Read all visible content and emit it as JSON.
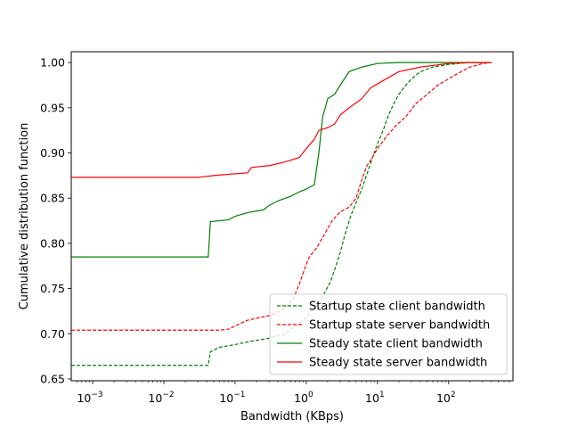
{
  "chart_data": {
    "type": "line",
    "title": "",
    "xlabel": "Bandwidth (KBps)",
    "ylabel": "Cumulative distribution function",
    "xscale": "log",
    "xlim": [
      0.0005,
      800
    ],
    "ylim": [
      0.648,
      1.012
    ],
    "x_ticks": [
      {
        "value": 0.001,
        "base": "10",
        "exp": "−3"
      },
      {
        "value": 0.01,
        "base": "10",
        "exp": "−2"
      },
      {
        "value": 0.1,
        "base": "10",
        "exp": "−1"
      },
      {
        "value": 1,
        "base": "10",
        "exp": "0"
      },
      {
        "value": 10,
        "base": "10",
        "exp": "1"
      },
      {
        "value": 100,
        "base": "10",
        "exp": "2"
      }
    ],
    "y_ticks": [
      "0.65",
      "0.70",
      "0.75",
      "0.80",
      "0.85",
      "0.90",
      "0.95",
      "1.00"
    ],
    "grid": false,
    "legend_position": "bottom-right",
    "series": [
      {
        "name": "Startup state client bandwidth",
        "color": "#008000",
        "style": "dashed",
        "points": [
          [
            0.0005,
            0.665
          ],
          [
            0.042,
            0.665
          ],
          [
            0.045,
            0.68
          ],
          [
            0.06,
            0.685
          ],
          [
            0.1,
            0.688
          ],
          [
            0.15,
            0.691
          ],
          [
            0.3,
            0.695
          ],
          [
            0.5,
            0.7
          ],
          [
            0.7,
            0.708
          ],
          [
            1.0,
            0.718
          ],
          [
            1.4,
            0.732
          ],
          [
            1.8,
            0.745
          ],
          [
            2.2,
            0.758
          ],
          [
            2.6,
            0.775
          ],
          [
            3.0,
            0.79
          ],
          [
            3.5,
            0.81
          ],
          [
            4.2,
            0.83
          ],
          [
            5.0,
            0.845
          ],
          [
            6.0,
            0.86
          ],
          [
            7.0,
            0.875
          ],
          [
            8.5,
            0.895
          ],
          [
            10.0,
            0.91
          ],
          [
            12.0,
            0.925
          ],
          [
            14.0,
            0.94
          ],
          [
            17.0,
            0.955
          ],
          [
            20.0,
            0.965
          ],
          [
            25.0,
            0.975
          ],
          [
            30.0,
            0.982
          ],
          [
            40.0,
            0.99
          ],
          [
            60.0,
            0.995
          ],
          [
            100.0,
            0.998
          ],
          [
            200.0,
            1.0
          ],
          [
            400.0,
            1.0
          ]
        ]
      },
      {
        "name": "Startup state server bandwidth",
        "color": "#ff0000",
        "style": "dashed",
        "points": [
          [
            0.0005,
            0.704
          ],
          [
            0.06,
            0.704
          ],
          [
            0.08,
            0.705
          ],
          [
            0.15,
            0.715
          ],
          [
            0.3,
            0.72
          ],
          [
            0.5,
            0.728
          ],
          [
            0.65,
            0.738
          ],
          [
            0.8,
            0.755
          ],
          [
            0.95,
            0.772
          ],
          [
            1.1,
            0.785
          ],
          [
            1.4,
            0.795
          ],
          [
            1.8,
            0.81
          ],
          [
            2.3,
            0.825
          ],
          [
            3.0,
            0.835
          ],
          [
            4.0,
            0.84
          ],
          [
            5.0,
            0.85
          ],
          [
            6.0,
            0.87
          ],
          [
            7.0,
            0.885
          ],
          [
            8.5,
            0.895
          ],
          [
            10.0,
            0.905
          ],
          [
            14.0,
            0.92
          ],
          [
            18.0,
            0.93
          ],
          [
            25.0,
            0.94
          ],
          [
            35.0,
            0.955
          ],
          [
            50.0,
            0.965
          ],
          [
            70.0,
            0.975
          ],
          [
            100.0,
            0.982
          ],
          [
            150.0,
            0.99
          ],
          [
            200.0,
            0.995
          ],
          [
            300.0,
            0.999
          ],
          [
            400.0,
            1.0
          ]
        ]
      },
      {
        "name": "Steady state client bandwidth",
        "color": "#008000",
        "style": "solid",
        "points": [
          [
            0.0005,
            0.785
          ],
          [
            0.042,
            0.785
          ],
          [
            0.045,
            0.824
          ],
          [
            0.08,
            0.826
          ],
          [
            0.1,
            0.83
          ],
          [
            0.15,
            0.834
          ],
          [
            0.25,
            0.837
          ],
          [
            0.3,
            0.842
          ],
          [
            0.4,
            0.847
          ],
          [
            0.6,
            0.852
          ],
          [
            0.8,
            0.857
          ],
          [
            1.0,
            0.86
          ],
          [
            1.3,
            0.865
          ],
          [
            1.5,
            0.9
          ],
          [
            1.7,
            0.94
          ],
          [
            2.0,
            0.96
          ],
          [
            2.5,
            0.965
          ],
          [
            3.0,
            0.975
          ],
          [
            4.0,
            0.99
          ],
          [
            6.0,
            0.995
          ],
          [
            10.0,
            0.999
          ],
          [
            20.0,
            1.0
          ],
          [
            400.0,
            1.0
          ]
        ]
      },
      {
        "name": "Steady state server bandwidth",
        "color": "#ff0000",
        "style": "solid",
        "points": [
          [
            0.0005,
            0.873
          ],
          [
            0.03,
            0.873
          ],
          [
            0.05,
            0.875
          ],
          [
            0.1,
            0.877
          ],
          [
            0.15,
            0.878
          ],
          [
            0.17,
            0.884
          ],
          [
            0.3,
            0.886
          ],
          [
            0.5,
            0.89
          ],
          [
            0.8,
            0.895
          ],
          [
            1.0,
            0.905
          ],
          [
            1.3,
            0.915
          ],
          [
            1.5,
            0.925
          ],
          [
            2.0,
            0.928
          ],
          [
            2.5,
            0.932
          ],
          [
            3.0,
            0.942
          ],
          [
            4.0,
            0.95
          ],
          [
            6.0,
            0.96
          ],
          [
            8.0,
            0.972
          ],
          [
            12.0,
            0.98
          ],
          [
            20.0,
            0.99
          ],
          [
            40.0,
            0.995
          ],
          [
            100.0,
            0.999
          ],
          [
            200.0,
            1.0
          ],
          [
            400.0,
            1.0
          ]
        ]
      }
    ]
  }
}
